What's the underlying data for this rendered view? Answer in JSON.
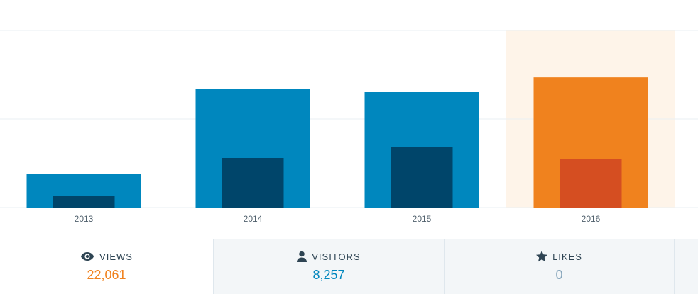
{
  "chart_data": {
    "type": "bar",
    "categories": [
      "2013",
      "2014",
      "2015",
      "2016"
    ],
    "series": [
      {
        "color": "#0087be",
        "highlight_color": "#f0821e",
        "values": [
          5760,
          20160,
          19560,
          22061
        ]
      },
      {
        "color": "#00456a",
        "highlight_color": "#d54e21",
        "values": [
          2040,
          8400,
          10200,
          8257
        ]
      }
    ],
    "ylim": [
      0,
      30000
    ],
    "yticks": [
      0,
      15000,
      30000
    ],
    "grid": true,
    "highlight_index": 3,
    "highlight_background": "#fef4e9"
  },
  "summary": [
    {
      "label": "VIEWS",
      "value": "22,061"
    },
    {
      "label": "VISITORS",
      "value": "8,257"
    },
    {
      "label": "LIKES",
      "value": "0"
    }
  ]
}
